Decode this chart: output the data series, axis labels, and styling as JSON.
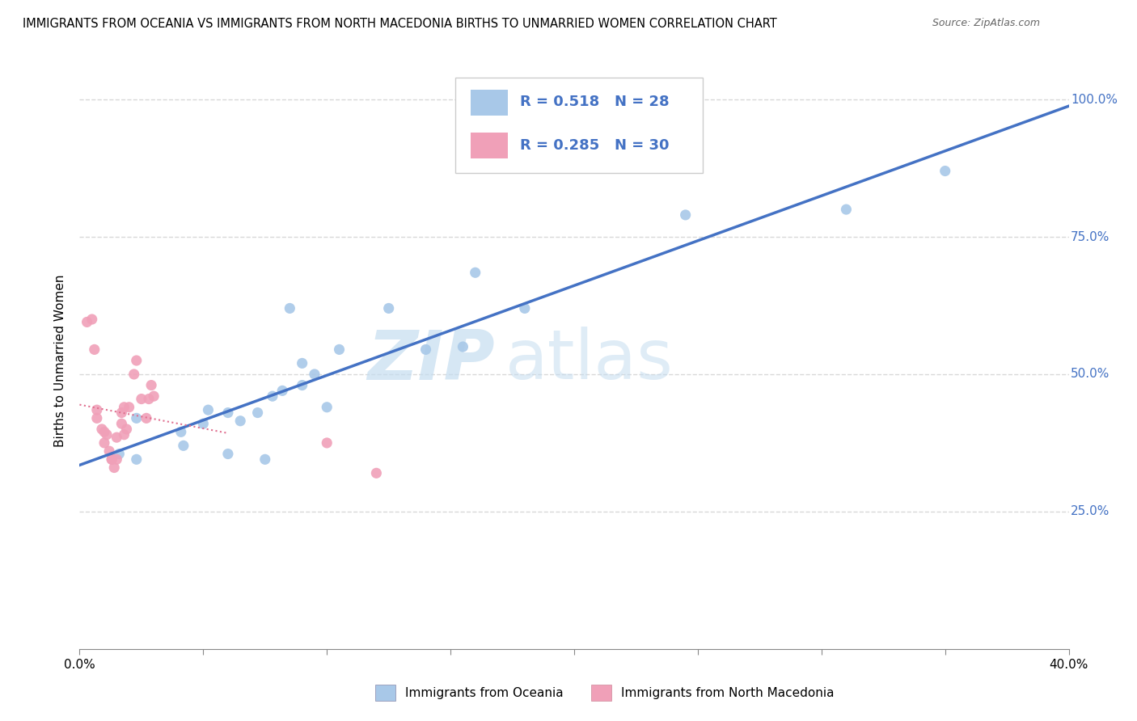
{
  "title": "IMMIGRANTS FROM OCEANIA VS IMMIGRANTS FROM NORTH MACEDONIA BIRTHS TO UNMARRIED WOMEN CORRELATION CHART",
  "source": "Source: ZipAtlas.com",
  "xlabel_bottom": [
    "Immigrants from Oceania",
    "Immigrants from North Macedonia"
  ],
  "ylabel": "Births to Unmarried Women",
  "watermark_zip": "ZIP",
  "watermark_atlas": "atlas",
  "xmin": 0.0,
  "xmax": 0.4,
  "ymin": 0.0,
  "ymax": 1.05,
  "ytick_positions": [
    0.25,
    0.5,
    0.75,
    1.0
  ],
  "ytick_labels": [
    "25.0%",
    "50.0%",
    "75.0%",
    "100.0%"
  ],
  "R_oceania": 0.518,
  "N_oceania": 28,
  "R_macedonia": 0.285,
  "N_macedonia": 30,
  "color_oceania": "#a8c8e8",
  "color_macedonia": "#f0a0b8",
  "line_color_oceania": "#4472c4",
  "line_color_macedonia": "#e07090",
  "legend_text_color": "#4472c4",
  "legend_border_color": "#cccccc",
  "oceania_x": [
    0.016,
    0.023,
    0.023,
    0.041,
    0.042,
    0.05,
    0.052,
    0.06,
    0.06,
    0.065,
    0.072,
    0.075,
    0.078,
    0.082,
    0.085,
    0.09,
    0.09,
    0.095,
    0.1,
    0.105,
    0.125,
    0.14,
    0.155,
    0.16,
    0.18,
    0.245,
    0.31,
    0.35
  ],
  "oceania_y": [
    0.355,
    0.345,
    0.42,
    0.395,
    0.37,
    0.41,
    0.435,
    0.43,
    0.355,
    0.415,
    0.43,
    0.345,
    0.46,
    0.47,
    0.62,
    0.48,
    0.52,
    0.5,
    0.44,
    0.545,
    0.62,
    0.545,
    0.55,
    0.685,
    0.62,
    0.79,
    0.8,
    0.87
  ],
  "macedonia_x": [
    0.003,
    0.005,
    0.006,
    0.007,
    0.007,
    0.009,
    0.01,
    0.01,
    0.011,
    0.012,
    0.013,
    0.013,
    0.014,
    0.015,
    0.015,
    0.017,
    0.017,
    0.018,
    0.018,
    0.019,
    0.02,
    0.022,
    0.023,
    0.025,
    0.027,
    0.028,
    0.029,
    0.03,
    0.1,
    0.12
  ],
  "macedonia_y": [
    0.595,
    0.6,
    0.545,
    0.435,
    0.42,
    0.4,
    0.395,
    0.375,
    0.39,
    0.36,
    0.345,
    0.345,
    0.33,
    0.345,
    0.385,
    0.41,
    0.43,
    0.39,
    0.44,
    0.4,
    0.44,
    0.5,
    0.525,
    0.455,
    0.42,
    0.455,
    0.48,
    0.46,
    0.375,
    0.32
  ],
  "grid_color": "#d8d8d8",
  "background_color": "#ffffff",
  "xtick_positions": [
    0.0,
    0.05,
    0.1,
    0.15,
    0.2,
    0.25,
    0.3,
    0.35,
    0.4
  ]
}
